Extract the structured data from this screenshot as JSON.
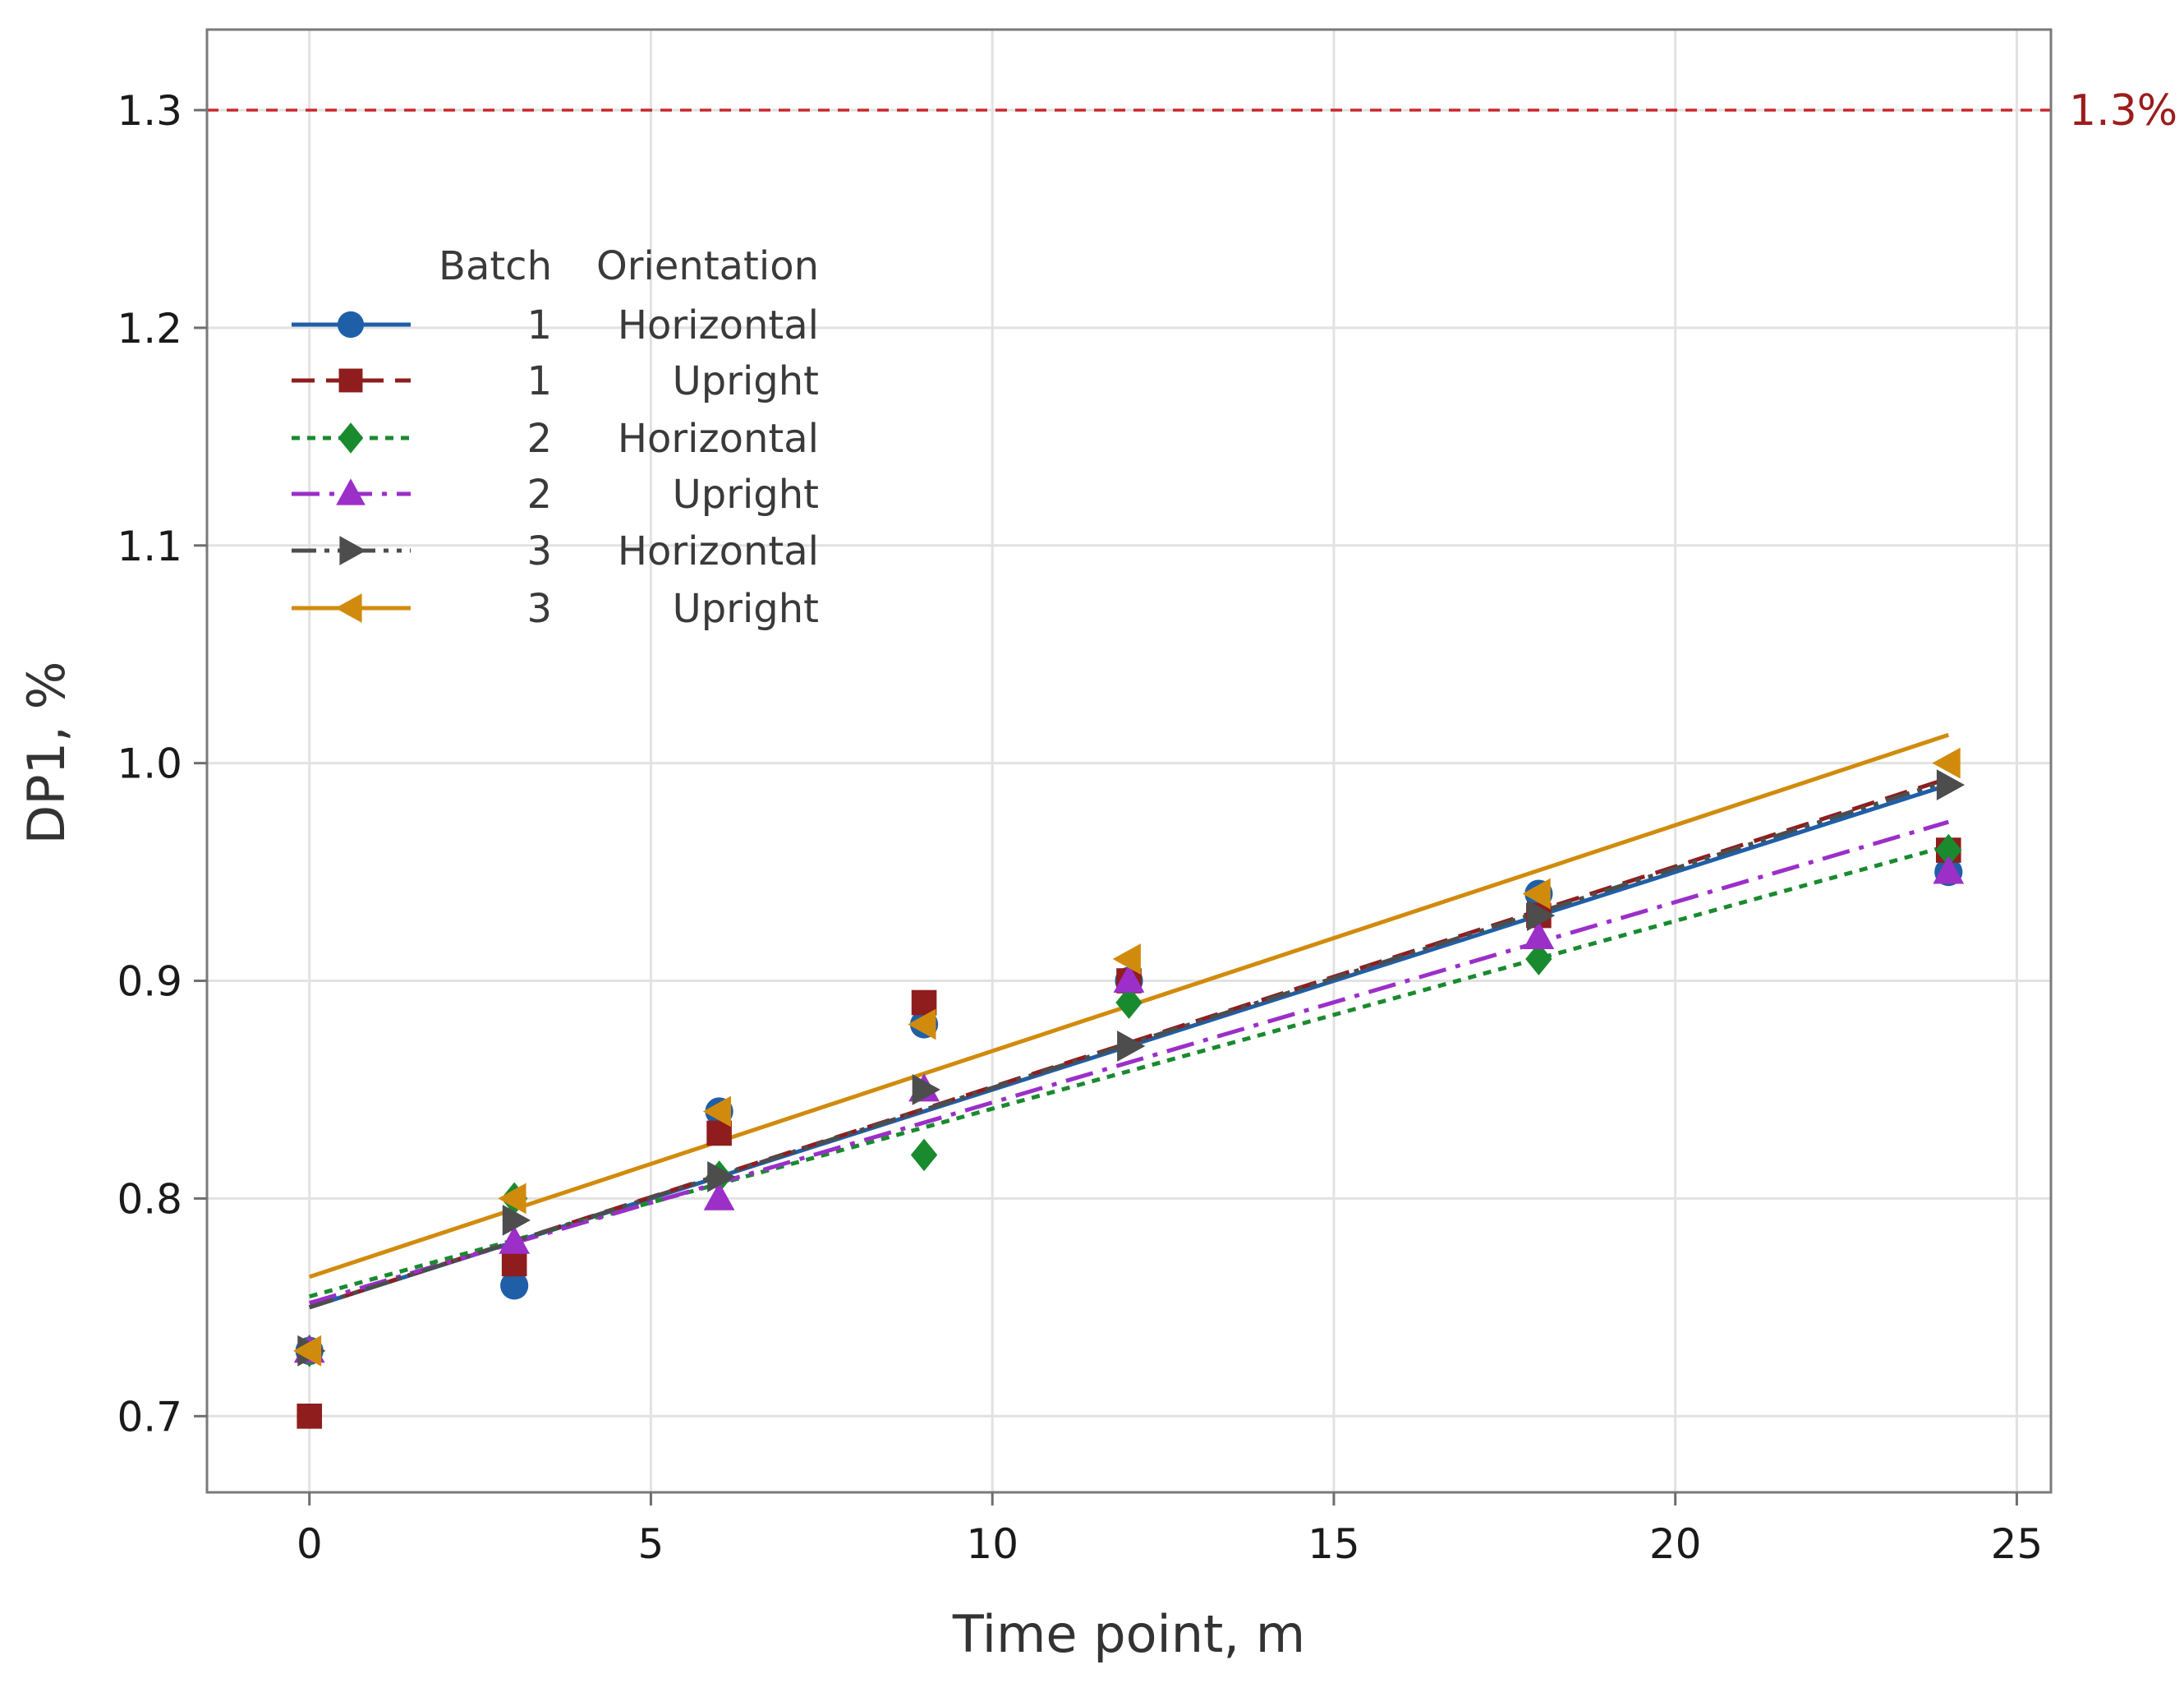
{
  "chart_data": {
    "type": "scatter",
    "title": "",
    "xlabel": "Time point, m",
    "ylabel": "DP1, %",
    "xlim": [
      -1.5,
      25.5
    ],
    "ylim": [
      0.665,
      1.337
    ],
    "xticks": [
      0,
      5,
      10,
      15,
      20,
      25
    ],
    "yticks": [
      0.7,
      0.8,
      0.9,
      1.0,
      1.1,
      1.2,
      1.3
    ],
    "xtick_labels": [
      "0",
      "5",
      "10",
      "15",
      "20",
      "25"
    ],
    "ytick_labels": [
      "0.7",
      "0.8",
      "0.9",
      "1.0",
      "1.1",
      "1.2",
      "1.3"
    ],
    "grid": true,
    "reference_line": {
      "y": 1.3,
      "label": "1.3%",
      "color": "#c8282d"
    },
    "legend": {
      "position": "upper-left",
      "header_batch": "Batch",
      "header_orientation": "Orientation"
    },
    "x": [
      0,
      3,
      6,
      9,
      12,
      18,
      24
    ],
    "series": [
      {
        "batch": "1",
        "orientation": "Horizontal",
        "color": "#1f5fa8",
        "marker": "circle",
        "dash": "solid",
        "values": [
          0.73,
          0.76,
          0.84,
          0.88,
          0.9,
          0.94,
          0.95
        ],
        "fit": [
          0.75,
          0.99
        ]
      },
      {
        "batch": "1",
        "orientation": "Upright",
        "color": "#8f1d1d",
        "marker": "square",
        "dash": "dashed",
        "values": [
          0.7,
          0.77,
          0.83,
          0.89,
          0.9,
          0.93,
          0.96
        ],
        "fit": [
          0.75,
          0.993
        ]
      },
      {
        "batch": "2",
        "orientation": "Horizontal",
        "color": "#1a8a2e",
        "marker": "diamond",
        "dash": "dotted",
        "values": [
          0.73,
          0.8,
          0.81,
          0.82,
          0.89,
          0.91,
          0.96
        ],
        "fit": [
          0.755,
          0.962
        ]
      },
      {
        "batch": "2",
        "orientation": "Upright",
        "color": "#9b2fc8",
        "marker": "triangle-up",
        "dash": "dashdot",
        "values": [
          0.73,
          0.78,
          0.8,
          0.85,
          0.9,
          0.92,
          0.95
        ],
        "fit": [
          0.752,
          0.973
        ]
      },
      {
        "batch": "3",
        "orientation": "Horizontal",
        "color": "#4d4d4d",
        "marker": "triangle-right",
        "dash": "dashdotdot",
        "values": [
          0.73,
          0.79,
          0.81,
          0.85,
          0.87,
          0.93,
          0.99
        ],
        "fit": [
          0.75,
          0.992
        ]
      },
      {
        "batch": "3",
        "orientation": "Upright",
        "color": "#d18b0c",
        "marker": "triangle-left",
        "dash": "solid",
        "values": [
          0.73,
          0.8,
          0.84,
          0.88,
          0.91,
          0.94,
          1.0
        ],
        "fit": [
          0.764,
          1.013
        ]
      }
    ]
  }
}
